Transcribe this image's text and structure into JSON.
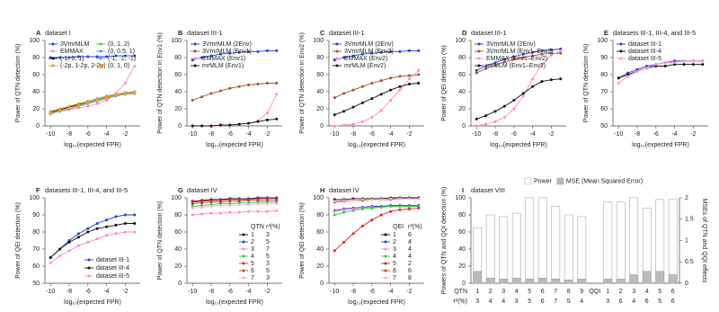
{
  "chart_data": [
    {
      "type": "line",
      "panel": "A",
      "title": "dataset I",
      "xlabel": "log₁₀(expected FPR)",
      "ylabel": "Power of QTN detection (%)",
      "x": [
        -10,
        -9,
        -8,
        -7,
        -6,
        -5,
        -4,
        -3,
        -2,
        -1
      ],
      "xlim": [
        -10.6,
        -0.4
      ],
      "xticks": [
        -10,
        -8,
        -6,
        -4,
        -2
      ],
      "ylim": [
        0,
        100
      ],
      "yticks": [
        0,
        20,
        40,
        60,
        80,
        100
      ],
      "legend": "upper left",
      "legend_columns": 2,
      "series": [
        {
          "name": "3VmrMLM",
          "color": "#1f3fd6",
          "values": [
            80,
            80,
            80,
            81,
            81,
            81,
            81,
            82,
            82,
            82
          ]
        },
        {
          "name": "(0, 1, 2)",
          "color": "#33cc33",
          "values": [
            15,
            18,
            21,
            24,
            27,
            30,
            33,
            36,
            38,
            39
          ]
        },
        {
          "name": "EMMAX",
          "color": "#ff88cc",
          "values": [
            15,
            17,
            19,
            21,
            23,
            26,
            30,
            38,
            50,
            70
          ]
        },
        {
          "name": "(0, 0.5, 1)",
          "color": "#3399ff",
          "values": [
            16,
            19,
            22,
            25,
            28,
            31,
            34,
            37,
            39,
            40
          ]
        },
        {
          "name": "(-1, 0, 1)",
          "color": "#111111",
          "values": [
            16,
            19,
            22,
            25,
            27,
            30,
            33,
            36,
            38,
            38
          ]
        },
        {
          "name": "(-1, -1, -1)",
          "color": "#6699cc",
          "values": [
            14,
            17,
            20,
            23,
            26,
            29,
            32,
            35,
            37,
            38
          ]
        },
        {
          "name": "(-2p, 1-2p, 2-2p)",
          "color": "#cc9933",
          "values": [
            17,
            20,
            23,
            26,
            29,
            32,
            35,
            37,
            39,
            40
          ]
        },
        {
          "name": "(0, 1, 0)",
          "color": "#ffaa00",
          "values": [
            15,
            18,
            21,
            24,
            27,
            30,
            33,
            36,
            38,
            39
          ]
        }
      ]
    },
    {
      "type": "line",
      "panel": "B",
      "title": "dataset III-1",
      "xlabel": "log₁₀(expected FPR)",
      "ylabel": "Power of QTN detection in Env1 (%)",
      "x": [
        -10,
        -9,
        -8,
        -7,
        -6,
        -5,
        -4,
        -3,
        -2,
        -1
      ],
      "xlim": [
        -10.6,
        -0.4
      ],
      "xticks": [
        -10,
        -8,
        -6,
        -4,
        -2
      ],
      "ylim": [
        0,
        100
      ],
      "yticks": [
        0,
        20,
        40,
        60,
        80,
        100
      ],
      "legend": "upper left",
      "legend_columns": 1,
      "series": [
        {
          "name": "3VmrMLM (2Env)",
          "color": "#1f3fd6",
          "values": [
            77,
            80,
            82,
            84,
            85,
            86,
            87,
            87,
            88,
            88
          ]
        },
        {
          "name": "3VmrMLM (Env1)",
          "color": "#a0522d",
          "values": [
            30,
            34,
            38,
            41,
            44,
            46,
            48,
            49,
            50,
            50
          ]
        },
        {
          "name": "EMMAX (Env1)",
          "color": "#ff88cc",
          "values": [
            0,
            0,
            0,
            0,
            1,
            2,
            3,
            6,
            15,
            37
          ]
        },
        {
          "name": "mrMLM (Env1)",
          "color": "#111111",
          "values": [
            0,
            0,
            0,
            1,
            1,
            2,
            3,
            5,
            7,
            8
          ]
        }
      ]
    },
    {
      "type": "line",
      "panel": "C",
      "title": "dataset III-1",
      "xlabel": "log₁₀(expected FPR)",
      "ylabel": "Power of QTN detection in Env2 (%)",
      "x": [
        -10,
        -9,
        -8,
        -7,
        -6,
        -5,
        -4,
        -3,
        -2,
        -1
      ],
      "xlim": [
        -10.6,
        -0.4
      ],
      "xticks": [
        -10,
        -8,
        -6,
        -4,
        -2
      ],
      "ylim": [
        0,
        100
      ],
      "yticks": [
        0,
        20,
        40,
        60,
        80,
        100
      ],
      "legend": "upper left",
      "legend_columns": 1,
      "series": [
        {
          "name": "3VmrMLM (2Env)",
          "color": "#1f3fd6",
          "values": [
            77,
            80,
            82,
            84,
            85,
            86,
            87,
            87,
            88,
            88
          ]
        },
        {
          "name": "3VmrMLM (Env2)",
          "color": "#a0522d",
          "values": [
            33,
            38,
            42,
            46,
            50,
            53,
            56,
            58,
            59,
            60
          ]
        },
        {
          "name": "EMMAX (Env2)",
          "color": "#ff88cc",
          "values": [
            0,
            1,
            2,
            5,
            10,
            18,
            30,
            42,
            55,
            65
          ]
        },
        {
          "name": "mrMLM (Env2)",
          "color": "#111111",
          "values": [
            13,
            17,
            22,
            27,
            32,
            37,
            42,
            46,
            49,
            50
          ]
        }
      ]
    },
    {
      "type": "line",
      "panel": "D",
      "title": "dataset III-1",
      "xlabel": "log₁₀(expected FPR)",
      "ylabel": "Power of QEI detection (%)",
      "x": [
        -10,
        -9,
        -8,
        -7,
        -6,
        -5,
        -4,
        -3,
        -2,
        -1
      ],
      "xlim": [
        -10.6,
        -0.4
      ],
      "xticks": [
        -10,
        -8,
        -6,
        -4,
        -2
      ],
      "ylim": [
        0,
        100
      ],
      "yticks": [
        0,
        20,
        40,
        60,
        80,
        100
      ],
      "legend": "upper left",
      "legend_columns": 1,
      "series": [
        {
          "name": "3VmrMLM (2Env)",
          "color": "#1f3fd6",
          "values": [
            65,
            70,
            74,
            78,
            81,
            84,
            86,
            88,
            89,
            90
          ]
        },
        {
          "name": "3VmrMLM (Env1–Env2)",
          "color": "#a0522d",
          "values": [
            62,
            67,
            71,
            75,
            78,
            80,
            82,
            84,
            85,
            85
          ]
        },
        {
          "name": "EMMAX (Env1–Env2)",
          "color": "#ff88cc",
          "values": [
            0,
            2,
            5,
            10,
            20,
            35,
            55,
            72,
            83,
            88
          ]
        },
        {
          "name": "mrMLM (Env1–Env2)",
          "color": "#111111",
          "values": [
            8,
            12,
            17,
            23,
            30,
            38,
            46,
            52,
            54,
            55
          ]
        }
      ]
    },
    {
      "type": "line",
      "panel": "E",
      "title": "datasets III-1, III-4, and III-5",
      "xlabel": "log₁₀(expected FPR)",
      "ylabel": "Power of QTN detection (%)",
      "x": [
        -10,
        -9,
        -8,
        -7,
        -6,
        -5,
        -4,
        -3,
        -2,
        -1
      ],
      "xlim": [
        -10.6,
        -0.4
      ],
      "xticks": [
        -10,
        -8,
        -6,
        -4,
        -2
      ],
      "ylim": [
        50,
        100
      ],
      "yticks": [
        50,
        60,
        70,
        80,
        90,
        100
      ],
      "legend": "upper left",
      "legend_columns": 1,
      "series": [
        {
          "name": "dataset III-1",
          "color": "#1f3fd6",
          "values": [
            78,
            81,
            83,
            85,
            86,
            87,
            88,
            88,
            88,
            88
          ]
        },
        {
          "name": "dataset III-4",
          "color": "#111111",
          "values": [
            78,
            80,
            82,
            84,
            85,
            85,
            86,
            86,
            86,
            86
          ]
        },
        {
          "name": "dataset III-5",
          "color": "#ff88cc",
          "values": [
            75,
            79,
            82,
            84,
            86,
            87,
            87,
            88,
            88,
            88
          ]
        }
      ]
    },
    {
      "type": "line",
      "panel": "F",
      "title": "datasets III-1, III-4, and III-5",
      "xlabel": "log₁₀(expected FPR)",
      "ylabel": "Power of QEI detection (%)",
      "x": [
        -10,
        -9,
        -8,
        -7,
        -6,
        -5,
        -4,
        -3,
        -2,
        -1
      ],
      "xlim": [
        -10.6,
        -0.4
      ],
      "xticks": [
        -10,
        -8,
        -6,
        -4,
        -2
      ],
      "ylim": [
        50,
        100
      ],
      "yticks": [
        50,
        60,
        70,
        80,
        90,
        100
      ],
      "legend": "lower right",
      "legend_columns": 1,
      "series": [
        {
          "name": "dataset III-1",
          "color": "#1f3fd6",
          "values": [
            65,
            70,
            75,
            79,
            82,
            85,
            87,
            89,
            90,
            90
          ]
        },
        {
          "name": "dataset III-4",
          "color": "#111111",
          "values": [
            65,
            70,
            74,
            77,
            80,
            82,
            83,
            84,
            85,
            85
          ]
        },
        {
          "name": "dataset III-5",
          "color": "#ff88cc",
          "values": [
            62,
            66,
            69,
            72,
            74,
            76,
            78,
            79,
            80,
            80
          ]
        }
      ]
    },
    {
      "type": "line",
      "panel": "G",
      "title": "dataset IV",
      "xlabel": "log₁₀(expected FPR)",
      "ylabel": "Power of QTN detection (%)",
      "x": [
        -10,
        -9,
        -8,
        -7,
        -6,
        -5,
        -4,
        -3,
        -2,
        -1
      ],
      "xlim": [
        -10.6,
        -0.4
      ],
      "xticks": [
        -10,
        -8,
        -6,
        -4,
        -2
      ],
      "ylim": [
        0,
        100
      ],
      "yticks": [
        0,
        20,
        40,
        60,
        80,
        100
      ],
      "legend": "lower right",
      "legend_columns": 1,
      "legend_header": [
        "QTN",
        "r²(%)"
      ],
      "series": [
        {
          "name": "1",
          "r2": 3,
          "color": "#111111",
          "values": [
            96,
            97,
            98,
            98,
            99,
            99,
            99,
            100,
            100,
            100
          ]
        },
        {
          "name": "2",
          "r2": 5,
          "color": "#1f3fd6",
          "values": [
            95,
            96,
            97,
            98,
            98,
            99,
            99,
            99,
            100,
            100
          ]
        },
        {
          "name": "3",
          "r2": 7,
          "color": "#ff88cc",
          "values": [
            80,
            81,
            82,
            82,
            83,
            83,
            84,
            84,
            84,
            85
          ]
        },
        {
          "name": "4",
          "r2": 5,
          "color": "#33cc33",
          "values": [
            90,
            91,
            92,
            93,
            93,
            94,
            94,
            95,
            95,
            95
          ]
        },
        {
          "name": "5",
          "r2": 3,
          "color": "#e02020",
          "values": [
            96,
            96,
            97,
            97,
            98,
            98,
            98,
            99,
            99,
            99
          ]
        },
        {
          "name": "6",
          "r2": 5,
          "color": "#a0522d",
          "values": [
            93,
            94,
            95,
            95,
            96,
            96,
            97,
            97,
            97,
            97
          ]
        },
        {
          "name": "7",
          "r2": 3,
          "color": "#ffaadd",
          "values": [
            88,
            89,
            90,
            91,
            91,
            92,
            92,
            93,
            93,
            93
          ]
        }
      ]
    },
    {
      "type": "line",
      "panel": "H",
      "title": "dataset IV",
      "xlabel": "log₁₀(expected FPR)",
      "ylabel": "Power of QEI detection (%)",
      "x": [
        -10,
        -9,
        -8,
        -7,
        -6,
        -5,
        -4,
        -3,
        -2,
        -1
      ],
      "xlim": [
        -10.6,
        -0.4
      ],
      "xticks": [
        -10,
        -8,
        -6,
        -4,
        -2
      ],
      "ylim": [
        0,
        100
      ],
      "yticks": [
        0,
        20,
        40,
        60,
        80,
        100
      ],
      "legend": "lower right",
      "legend_columns": 1,
      "legend_header": [
        "QEI",
        "r²(%)"
      ],
      "series": [
        {
          "name": "1",
          "r2": 6,
          "color": "#111111",
          "values": [
            98,
            98,
            99,
            99,
            99,
            99,
            100,
            100,
            100,
            100
          ]
        },
        {
          "name": "2",
          "r2": 4,
          "color": "#1f3fd6",
          "values": [
            85,
            87,
            88,
            89,
            90,
            90,
            91,
            91,
            91,
            91
          ]
        },
        {
          "name": "3",
          "r2": 4,
          "color": "#ff88cc",
          "values": [
            84,
            86,
            87,
            88,
            89,
            89,
            90,
            90,
            90,
            90
          ]
        },
        {
          "name": "4",
          "r2": 4,
          "color": "#33cc33",
          "values": [
            80,
            83,
            85,
            87,
            88,
            89,
            90,
            90,
            90,
            90
          ]
        },
        {
          "name": "5",
          "r2": 2,
          "color": "#e02020",
          "values": [
            38,
            48,
            58,
            67,
            74,
            80,
            84,
            86,
            87,
            88
          ]
        },
        {
          "name": "6",
          "r2": 6,
          "color": "#a0522d",
          "values": [
            95,
            96,
            97,
            97,
            98,
            98,
            98,
            99,
            99,
            99
          ]
        },
        {
          "name": "7",
          "r2": 8,
          "color": "#ffaadd",
          "values": [
            96,
            97,
            97,
            98,
            98,
            98,
            99,
            99,
            99,
            99
          ]
        }
      ]
    },
    {
      "type": "bar",
      "panel": "I",
      "title": "dataset VIII",
      "ylabel": "Powers of QTN and QQI detection (%)",
      "y2label": "MSEs of QTN and QQI effects",
      "ylim": [
        0,
        100
      ],
      "yticks": [
        0,
        20,
        40,
        60,
        80,
        100
      ],
      "y2lim": [
        0,
        2
      ],
      "y2ticks": [
        0,
        0.5,
        1,
        1.5,
        2
      ],
      "r2_label": "r²(%)",
      "groups": [
        {
          "name": "QTN",
          "categories": [
            "1",
            "2",
            "3",
            "4",
            "5",
            "6",
            "7",
            "8",
            "9"
          ],
          "r2": [
            3,
            4,
            4,
            3,
            5,
            6,
            7,
            5,
            4
          ]
        },
        {
          "name": "QQI",
          "categories": [
            "1",
            "2",
            "3",
            "4",
            "5",
            "6"
          ],
          "r2": [
            3,
            6,
            4,
            6,
            5,
            6
          ]
        }
      ],
      "series": [
        {
          "name": "Power",
          "color": "#ffffff",
          "values": [
            [
              65,
              80,
              78,
              82,
              100,
              100,
              90,
              80,
              78
            ],
            [
              95,
              95,
              100,
              88,
              98,
              98
            ]
          ]
        },
        {
          "name": "MSE (Mean Squared Error)",
          "color": "#bbbbbb",
          "axis": "y2",
          "values": [
            [
              0.28,
              0.12,
              0.1,
              0.12,
              0.1,
              0.12,
              0.1,
              0.08,
              0.1
            ],
            [
              0.1,
              0.1,
              0.2,
              0.28,
              0.28,
              0.2
            ]
          ]
        }
      ]
    }
  ]
}
